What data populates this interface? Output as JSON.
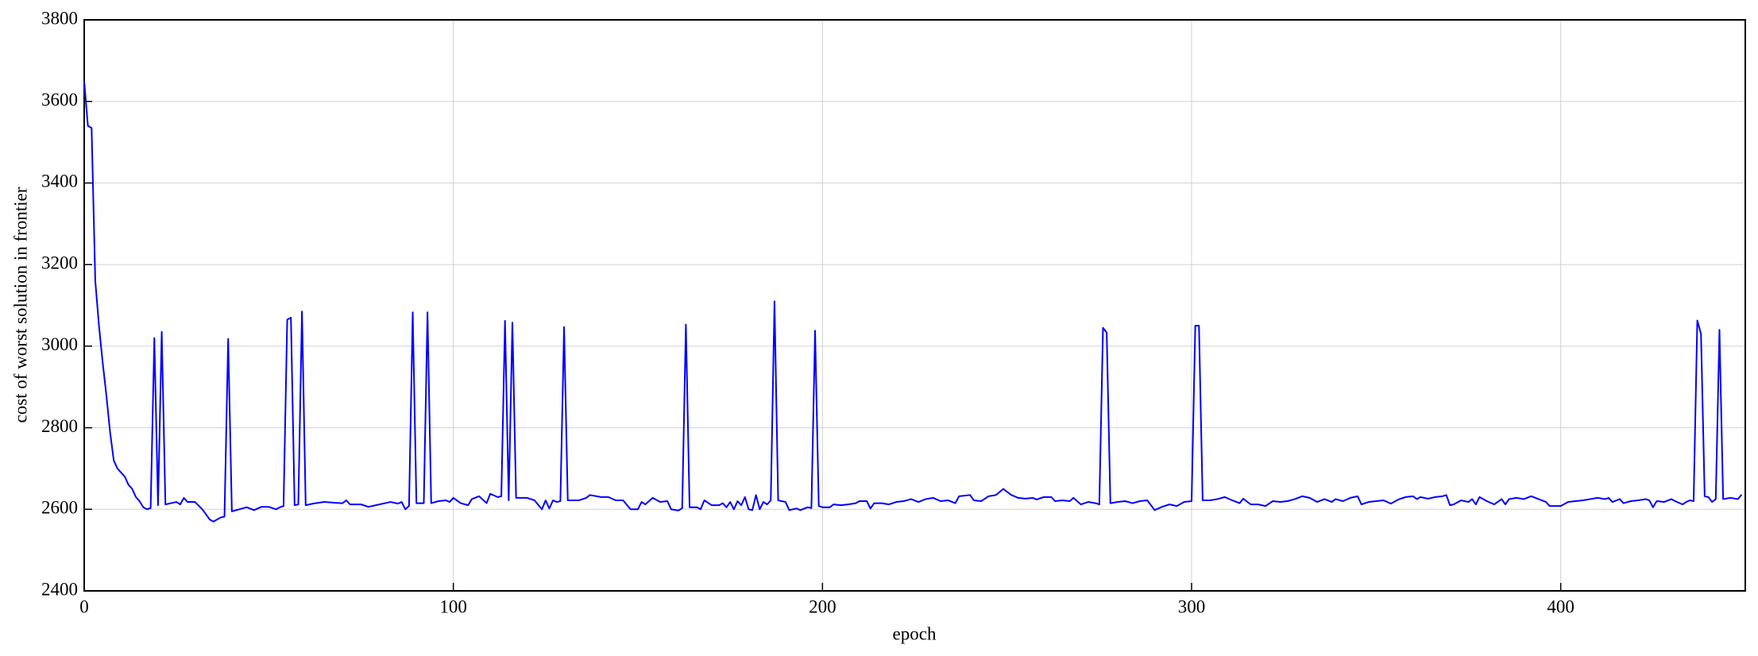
{
  "chart_data": {
    "type": "line",
    "xlabel": "epoch",
    "ylabel": "cost of worst solution in frontier",
    "color": "#0000ff",
    "grid": true,
    "xlim": [
      0,
      450
    ],
    "ylim": [
      2400,
      3800
    ],
    "xticks": [
      0,
      100,
      200,
      300,
      400
    ],
    "yticks": [
      2400,
      2600,
      2800,
      3000,
      3200,
      3400,
      3600,
      3800
    ],
    "x": [
      0,
      1,
      2,
      3,
      4,
      5,
      6,
      7,
      8,
      9,
      10,
      11,
      12,
      13,
      14,
      15,
      16,
      17,
      18,
      19,
      20,
      21,
      22,
      25,
      26,
      27,
      28,
      30,
      32,
      34,
      35,
      37,
      38,
      39,
      40,
      42,
      44,
      46,
      48,
      50,
      52,
      53,
      54,
      55,
      56,
      57,
      58,
      59,
      60,
      62,
      65,
      68,
      70,
      71,
      72,
      75,
      77,
      80,
      83,
      85,
      86,
      87,
      88,
      89,
      90,
      92,
      93,
      94,
      96,
      98,
      99,
      100,
      102,
      104,
      105,
      107,
      109,
      110,
      112,
      113,
      114,
      115,
      116,
      117,
      120,
      122,
      124,
      125,
      126,
      127,
      128,
      129,
      130,
      131,
      134,
      136,
      137,
      140,
      142,
      144,
      146,
      148,
      150,
      151,
      152,
      154,
      156,
      158,
      159,
      161,
      162,
      163,
      164,
      166,
      167,
      168,
      170,
      172,
      173,
      174,
      175,
      176,
      177,
      178,
      179,
      180,
      181,
      182,
      183,
      184,
      185,
      186,
      187,
      188,
      190,
      191,
      193,
      194,
      196,
      197,
      198,
      199,
      200,
      202,
      203,
      205,
      207,
      209,
      210,
      212,
      213,
      214,
      216,
      218,
      220,
      222,
      224,
      226,
      228,
      230,
      232,
      234,
      236,
      237,
      240,
      241,
      243,
      245,
      247,
      249,
      251,
      253,
      255,
      257,
      258,
      260,
      262,
      263,
      265,
      267,
      268,
      270,
      272,
      274,
      275,
      276,
      277,
      278,
      280,
      282,
      284,
      286,
      288,
      290,
      292,
      294,
      296,
      298,
      300,
      301,
      302,
      303,
      305,
      307,
      309,
      311,
      313,
      314,
      316,
      318,
      320,
      322,
      324,
      326,
      328,
      330,
      332,
      334,
      336,
      338,
      339,
      341,
      343,
      345,
      346,
      348,
      350,
      352,
      354,
      356,
      358,
      360,
      361,
      362,
      364,
      366,
      368,
      369,
      370,
      371,
      373,
      375,
      376,
      377,
      378,
      380,
      382,
      384,
      385,
      386,
      388,
      390,
      392,
      394,
      396,
      397,
      400,
      402,
      404,
      406,
      408,
      410,
      412,
      413,
      414,
      416,
      417,
      419,
      421,
      423,
      424,
      425,
      426,
      428,
      430,
      431,
      433,
      434,
      435,
      436,
      437,
      438,
      439,
      440,
      441,
      442,
      443,
      444,
      446,
      448,
      449
    ],
    "values": [
      3650,
      3540,
      3535,
      3160,
      3050,
      2960,
      2880,
      2790,
      2720,
      2700,
      2690,
      2680,
      2660,
      2650,
      2630,
      2620,
      2605,
      2600,
      2603,
      3020,
      2610,
      3035,
      2612,
      2618,
      2612,
      2628,
      2618,
      2618,
      2600,
      2575,
      2570,
      2580,
      2582,
      3018,
      2595,
      2600,
      2605,
      2598,
      2606,
      2606,
      2600,
      2605,
      2608,
      3065,
      3070,
      2610,
      2612,
      3085,
      2610,
      2614,
      2618,
      2616,
      2615,
      2622,
      2612,
      2612,
      2606,
      2612,
      2618,
      2614,
      2618,
      2600,
      2608,
      3083,
      2615,
      2615,
      3083,
      2615,
      2620,
      2622,
      2618,
      2628,
      2615,
      2610,
      2625,
      2632,
      2615,
      2638,
      2630,
      2632,
      3062,
      2622,
      3058,
      2628,
      2628,
      2622,
      2600,
      2622,
      2602,
      2622,
      2618,
      2620,
      3047,
      2622,
      2622,
      2628,
      2635,
      2630,
      2630,
      2622,
      2622,
      2600,
      2600,
      2618,
      2612,
      2628,
      2618,
      2620,
      2600,
      2597,
      2603,
      3053,
      2605,
      2605,
      2600,
      2622,
      2610,
      2610,
      2615,
      2605,
      2618,
      2600,
      2620,
      2610,
      2630,
      2600,
      2598,
      2635,
      2600,
      2618,
      2612,
      2622,
      3110,
      2622,
      2618,
      2598,
      2602,
      2598,
      2605,
      2603,
      3038,
      2608,
      2605,
      2605,
      2612,
      2610,
      2612,
      2615,
      2620,
      2620,
      2602,
      2615,
      2615,
      2612,
      2618,
      2620,
      2625,
      2618,
      2625,
      2628,
      2620,
      2622,
      2615,
      2632,
      2635,
      2622,
      2620,
      2632,
      2635,
      2650,
      2636,
      2628,
      2626,
      2628,
      2624,
      2630,
      2630,
      2620,
      2622,
      2620,
      2628,
      2612,
      2618,
      2615,
      2612,
      3045,
      3033,
      2615,
      2618,
      2620,
      2615,
      2620,
      2622,
      2598,
      2606,
      2612,
      2608,
      2618,
      2620,
      3050,
      3050,
      2622,
      2622,
      2625,
      2630,
      2622,
      2615,
      2626,
      2612,
      2612,
      2608,
      2620,
      2618,
      2620,
      2625,
      2632,
      2628,
      2618,
      2625,
      2618,
      2625,
      2620,
      2628,
      2632,
      2612,
      2618,
      2620,
      2622,
      2614,
      2624,
      2630,
      2632,
      2625,
      2630,
      2626,
      2630,
      2632,
      2635,
      2610,
      2612,
      2622,
      2618,
      2625,
      2612,
      2630,
      2620,
      2612,
      2625,
      2612,
      2625,
      2628,
      2625,
      2632,
      2625,
      2618,
      2608,
      2608,
      2618,
      2620,
      2622,
      2625,
      2628,
      2625,
      2628,
      2618,
      2625,
      2615,
      2620,
      2622,
      2625,
      2622,
      2605,
      2620,
      2618,
      2625,
      2620,
      2612,
      2618,
      2622,
      2620,
      3063,
      3030,
      2632,
      2630,
      2618,
      2625,
      3040,
      2625,
      2628,
      2625,
      2636
    ]
  }
}
